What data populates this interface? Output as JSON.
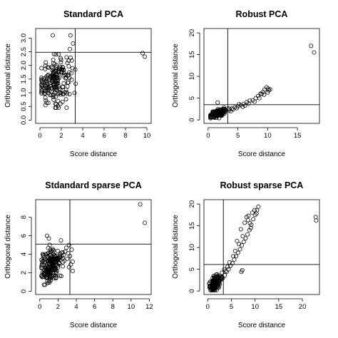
{
  "colors": {
    "ink": "#000000",
    "background": "#ffffff"
  },
  "chart_data": [
    {
      "type": "scatter",
      "title": "Standard PCA",
      "xlabel": "Score distance",
      "ylabel": "Orthogonal distance",
      "xlim": [
        -0.4,
        10.4
      ],
      "ylim": [
        -0.12,
        3.35
      ],
      "xticks": [
        0,
        2,
        4,
        6,
        8,
        10
      ],
      "yticks": [
        0.0,
        0.5,
        1.0,
        1.5,
        2.0,
        2.5,
        3.0
      ],
      "xtick_labels": [
        "0",
        "2",
        "4",
        "6",
        "8",
        "10"
      ],
      "ytick_labels": [
        "0.0",
        "0.5",
        "1.0",
        "1.5",
        "2.0",
        "2.5",
        "3.0"
      ],
      "cutoff_x": 3.3,
      "cutoff_y": 2.48,
      "grid": false,
      "legend": "none",
      "cluster": {
        "n": 200,
        "x_center": 1.4,
        "x_spread": 0.75,
        "y_center": 1.45,
        "y_spread": 0.42,
        "xy_slope": 0.12,
        "x_min": 0.15,
        "x_max": 3.5,
        "y_min": 0.45,
        "y_max": 3.0
      },
      "points": [
        [
          9.6,
          2.45
        ],
        [
          9.8,
          2.32
        ],
        [
          1.2,
          3.1
        ],
        [
          2.85,
          3.1
        ],
        [
          3.1,
          2.8
        ],
        [
          2.8,
          2.6
        ],
        [
          3.05,
          1.9
        ],
        [
          0.55,
          0.72
        ],
        [
          3.3,
          1.85
        ]
      ]
    },
    {
      "type": "scatter",
      "title": "Robust PCA",
      "xlabel": "Score distance",
      "ylabel": "Orthogonal distance",
      "xlim": [
        -0.7,
        18.7
      ],
      "ylim": [
        -0.8,
        21
      ],
      "xticks": [
        0,
        5,
        10,
        15
      ],
      "yticks": [
        0,
        5,
        10,
        15,
        20
      ],
      "xtick_labels": [
        "0",
        "5",
        "10",
        "15"
      ],
      "ytick_labels": [
        "0",
        "5",
        "10",
        "15",
        "20"
      ],
      "cutoff_x": 3.3,
      "cutoff_y": 3.5,
      "grid": false,
      "legend": "none",
      "cluster": {
        "n": 150,
        "x_center": 1.6,
        "x_spread": 0.7,
        "y_center": 1.5,
        "y_spread": 0.45,
        "xy_slope": 0.35,
        "x_min": 0.4,
        "x_max": 3.8,
        "y_min": 0.4,
        "y_max": 3.5
      },
      "points": [
        [
          3.5,
          2.2
        ],
        [
          4.0,
          2.6
        ],
        [
          4.5,
          2.9
        ],
        [
          5.0,
          3.1
        ],
        [
          5.5,
          3.4
        ],
        [
          6.0,
          3.7
        ],
        [
          6.5,
          4.1
        ],
        [
          7.0,
          4.4
        ],
        [
          7.5,
          4.5
        ],
        [
          8.0,
          5.0
        ],
        [
          8.4,
          5.5
        ],
        [
          8.8,
          6.0
        ],
        [
          9.2,
          6.4
        ],
        [
          9.5,
          7.0
        ],
        [
          9.8,
          7.5
        ],
        [
          10.1,
          7.2
        ],
        [
          10.4,
          7.0
        ],
        [
          10.0,
          6.3
        ],
        [
          9.4,
          5.8
        ],
        [
          8.6,
          5.0
        ],
        [
          7.8,
          4.2
        ],
        [
          6.8,
          3.8
        ],
        [
          4.2,
          2.4
        ],
        [
          4.8,
          2.7
        ],
        [
          5.8,
          3.0
        ],
        [
          3.8,
          2.0
        ],
        [
          10.2,
          6.8
        ],
        [
          9.0,
          6.0
        ],
        [
          5.2,
          3.6
        ],
        [
          6.2,
          3.3
        ],
        [
          17.3,
          17.0
        ],
        [
          17.8,
          15.5
        ],
        [
          1.6,
          4.0
        ]
      ]
    },
    {
      "type": "scatter",
      "title": "Stdandard sparse PCA",
      "xlabel": "Score distance",
      "ylabel": "Orthogonal distance",
      "xlim": [
        -0.45,
        12.2
      ],
      "ylim": [
        -0.35,
        9.9
      ],
      "xticks": [
        0,
        2,
        4,
        6,
        8,
        10,
        12
      ],
      "yticks": [
        0,
        2,
        4,
        6,
        8
      ],
      "xtick_labels": [
        "0",
        "2",
        "4",
        "6",
        "8",
        "10",
        "12"
      ],
      "ytick_labels": [
        "0",
        "2",
        "4",
        "6",
        "8"
      ],
      "cutoff_x": 3.3,
      "cutoff_y": 5.1,
      "grid": false,
      "legend": "none",
      "cluster": {
        "n": 220,
        "x_center": 1.2,
        "x_spread": 0.6,
        "y_center": 2.7,
        "y_spread": 0.9,
        "xy_slope": 0.5,
        "x_min": 0.2,
        "x_max": 3.2,
        "y_min": 0.7,
        "y_max": 5.5
      },
      "points": [
        [
          11.0,
          9.4
        ],
        [
          11.5,
          7.4
        ],
        [
          0.8,
          6.0
        ],
        [
          1.0,
          5.7
        ],
        [
          3.2,
          5.0
        ],
        [
          3.5,
          4.5
        ],
        [
          3.3,
          3.8
        ],
        [
          3.6,
          3.2
        ],
        [
          3.2,
          2.6
        ],
        [
          2.8,
          4.3
        ],
        [
          3.0,
          3.5
        ],
        [
          2.6,
          3.9
        ],
        [
          3.4,
          2.9
        ],
        [
          2.9,
          4.7
        ],
        [
          2.5,
          4.2
        ],
        [
          3.1,
          4.1
        ],
        [
          2.7,
          3.3
        ],
        [
          3.6,
          2.2
        ]
      ]
    },
    {
      "type": "scatter",
      "title": "Robust sparse PCA",
      "xlabel": "Score distance",
      "ylabel": "Orthogonal distance",
      "xlim": [
        -0.8,
        23.6
      ],
      "ylim": [
        -0.8,
        21
      ],
      "xticks": [
        0,
        5,
        10,
        15,
        20
      ],
      "yticks": [
        0,
        5,
        10,
        15,
        20
      ],
      "xtick_labels": [
        "0",
        "5",
        "10",
        "15",
        "20"
      ],
      "ytick_labels": [
        "0",
        "5",
        "10",
        "15",
        "20"
      ],
      "cutoff_x": 3.3,
      "cutoff_y": 6.1,
      "grid": false,
      "legend": "none",
      "cluster": {
        "n": 180,
        "x_center": 1.5,
        "x_spread": 0.55,
        "y_center": 1.7,
        "y_spread": 0.8,
        "xy_slope": 0.7,
        "x_min": 0.3,
        "x_max": 3.4,
        "y_min": 0.2,
        "y_max": 4.5
      },
      "points": [
        [
          3.2,
          3.0
        ],
        [
          3.6,
          3.6
        ],
        [
          4.0,
          4.4
        ],
        [
          4.4,
          5.0
        ],
        [
          4.8,
          5.8
        ],
        [
          5.2,
          6.4
        ],
        [
          5.6,
          7.2
        ],
        [
          6.0,
          8.0
        ],
        [
          6.4,
          8.8
        ],
        [
          6.8,
          9.6
        ],
        [
          7.2,
          10.5
        ],
        [
          7.6,
          11.3
        ],
        [
          8.0,
          12.1
        ],
        [
          8.4,
          13.0
        ],
        [
          8.8,
          14.0
        ],
        [
          9.2,
          15.2
        ],
        [
          9.6,
          16.5
        ],
        [
          10.0,
          17.5
        ],
        [
          10.4,
          18.6
        ],
        [
          10.7,
          19.4
        ],
        [
          9.9,
          18.6
        ],
        [
          9.4,
          18.0
        ],
        [
          8.6,
          17.3
        ],
        [
          8.2,
          17.0
        ],
        [
          7.8,
          15.7
        ],
        [
          7.0,
          14.2
        ],
        [
          7.4,
          12.6
        ],
        [
          6.6,
          10.8
        ],
        [
          5.8,
          9.2
        ],
        [
          5.4,
          8.0
        ],
        [
          4.6,
          6.6
        ],
        [
          4.2,
          5.6
        ],
        [
          3.8,
          4.6
        ],
        [
          7.1,
          4.4
        ],
        [
          7.3,
          4.8
        ],
        [
          8.9,
          15.6
        ],
        [
          9.1,
          14.5
        ],
        [
          6.2,
          11.5
        ],
        [
          10.3,
          17.8
        ],
        [
          8.5,
          16.3
        ],
        [
          22.8,
          17.0
        ],
        [
          22.9,
          16.2
        ],
        [
          3.5,
          5.0
        ],
        [
          3.0,
          4.2
        ]
      ]
    }
  ]
}
